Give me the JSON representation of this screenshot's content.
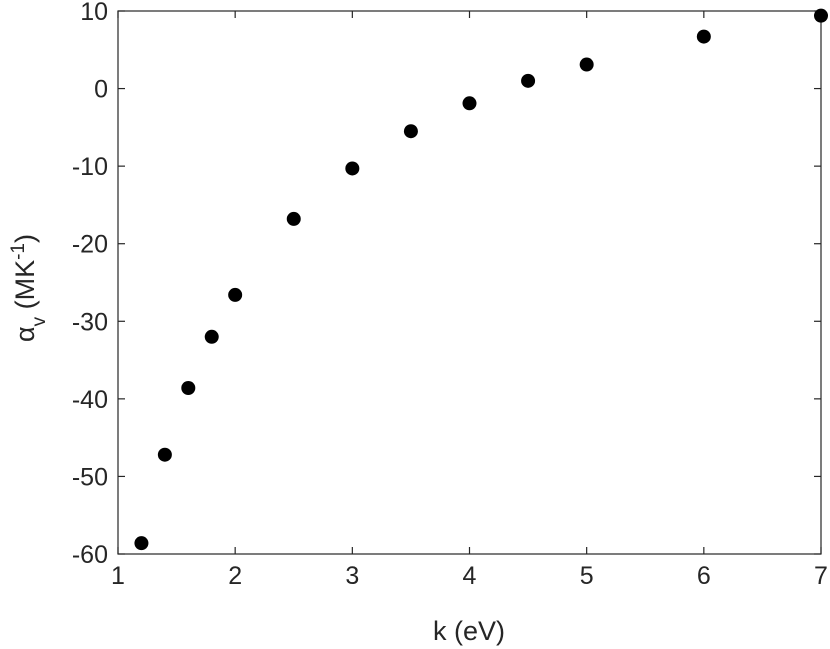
{
  "chart_data": {
    "type": "scatter",
    "title": "",
    "xlabel": "k (eV)",
    "ylabel_parts": {
      "base": "α",
      "subscript": "v",
      "unit_open": " (MK",
      "superscript": "-1",
      "unit_close": ")"
    },
    "xlim": [
      1,
      7
    ],
    "ylim": [
      -60,
      10
    ],
    "xticks": [
      1,
      2,
      3,
      4,
      5,
      6,
      7
    ],
    "yticks": [
      -60,
      -50,
      -40,
      -30,
      -20,
      -10,
      0,
      10
    ],
    "grid": false,
    "marker_color": "#000000",
    "series": [
      {
        "x": [
          1.2,
          1.4,
          1.6,
          1.8,
          2.0,
          2.5,
          3.0,
          3.5,
          4.0,
          4.5,
          5.0,
          6.0,
          7.0
        ],
        "y": [
          -58.6,
          -47.2,
          -38.6,
          -32.0,
          -26.6,
          -16.8,
          -10.3,
          -5.5,
          -1.9,
          1.0,
          3.1,
          6.7,
          9.4
        ]
      }
    ]
  }
}
